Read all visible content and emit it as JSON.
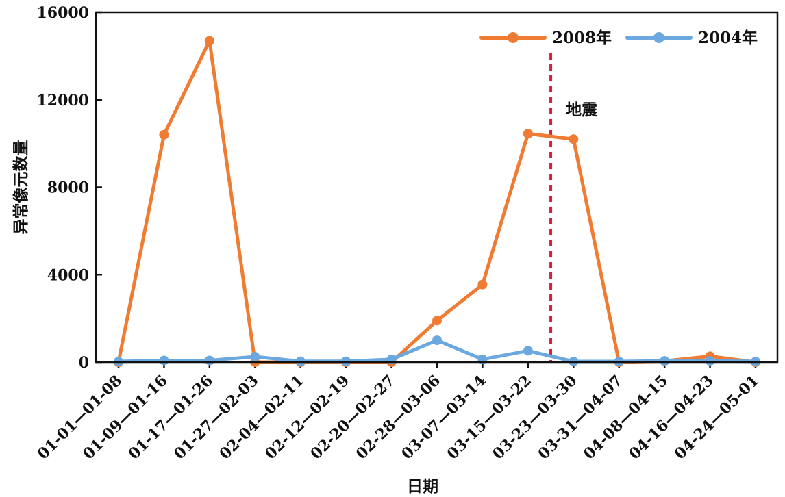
{
  "chart_data": {
    "type": "line",
    "title": "",
    "xlabel": "日期",
    "ylabel": "异常像元数量",
    "ylim": [
      0,
      16000
    ],
    "yticks": [
      0,
      4000,
      8000,
      12000,
      16000
    ],
    "grid": false,
    "legend_position": "top-right",
    "categories": [
      "01-01—01-08",
      "01-09—01-16",
      "01-17—01-26",
      "01-27—02-03",
      "02-04—02-11",
      "02-12—02-19",
      "02-20—02-27",
      "02-28—03-06",
      "03-07—03-14",
      "03-15—03-22",
      "03-23—03-30",
      "03-31—04-07",
      "04-08—04-15",
      "04-16—04-23",
      "04-24—05-01"
    ],
    "series": [
      {
        "name": "2008年",
        "color": "#f07b32",
        "values": [
          0,
          10400,
          14700,
          0,
          0,
          0,
          0,
          1900,
          3550,
          10450,
          10200,
          0,
          50,
          270,
          0
        ]
      },
      {
        "name": "2004年",
        "color": "#6aa8df",
        "values": [
          30,
          80,
          80,
          250,
          40,
          40,
          130,
          1000,
          130,
          520,
          30,
          30,
          60,
          60,
          30
        ]
      }
    ],
    "annotations": [
      {
        "text": "地震",
        "x_between": [
          "03-15—03-22",
          "03-23—03-30"
        ],
        "line_color": "#d6203c",
        "line_style": "dotted"
      }
    ]
  }
}
